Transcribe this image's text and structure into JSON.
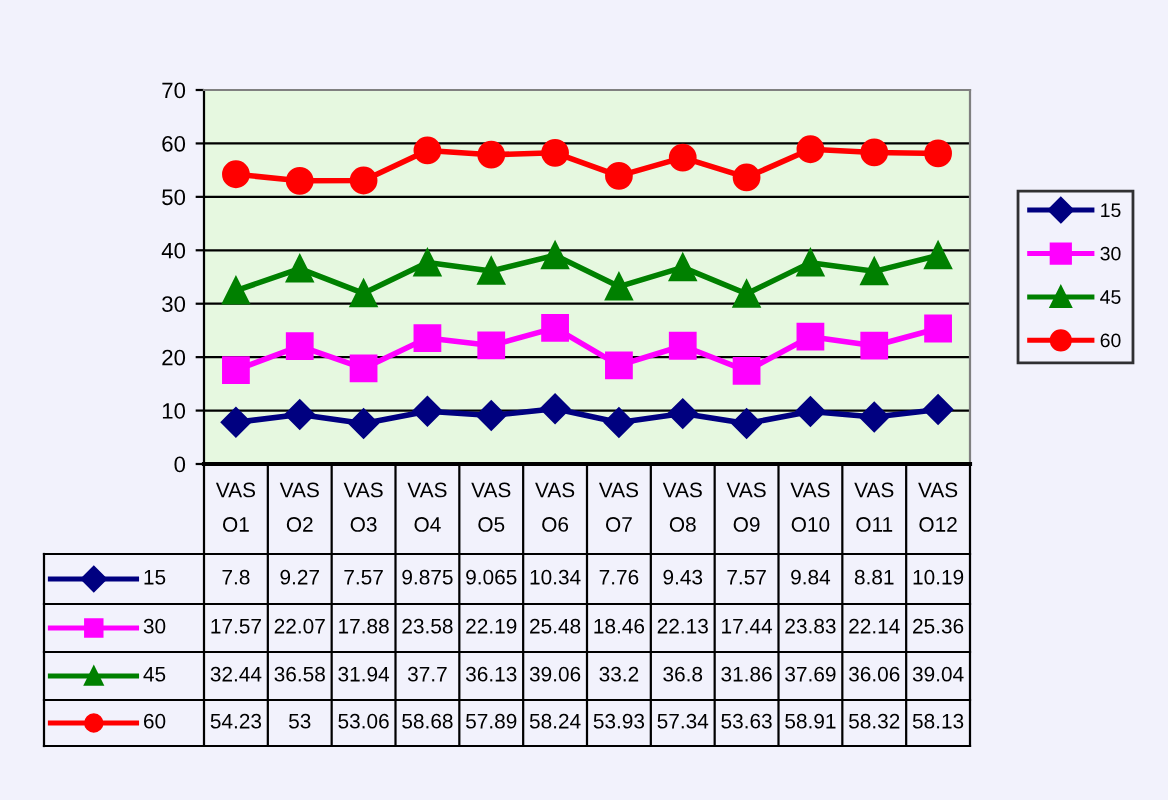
{
  "chart_data": {
    "type": "line",
    "categories": [
      "VAS O1",
      "VAS O2",
      "VAS O3",
      "VAS O4",
      "VAS O5",
      "VAS O6",
      "VAS O7",
      "VAS O8",
      "VAS O9",
      "VAS O10",
      "VAS O11",
      "VAS O12"
    ],
    "series": [
      {
        "name": "15",
        "color": "#000080",
        "marker": "diamond",
        "values": [
          7.8,
          9.27,
          7.57,
          9.875,
          9.065,
          10.34,
          7.76,
          9.43,
          7.57,
          9.84,
          8.81,
          10.19
        ]
      },
      {
        "name": "30",
        "color": "#ff00ff",
        "marker": "square",
        "values": [
          17.57,
          22.07,
          17.88,
          23.58,
          22.19,
          25.48,
          18.46,
          22.13,
          17.44,
          23.83,
          22.14,
          25.36
        ]
      },
      {
        "name": "45",
        "color": "#008000",
        "marker": "triangle",
        "values": [
          32.44,
          36.58,
          31.94,
          37.7,
          36.13,
          39.06,
          33.2,
          36.8,
          31.86,
          37.69,
          36.06,
          39.04
        ]
      },
      {
        "name": "60",
        "color": "#ff0000",
        "marker": "circle",
        "values": [
          54.23,
          53,
          53.06,
          58.68,
          57.89,
          58.24,
          53.93,
          57.34,
          53.63,
          58.91,
          58.32,
          58.13
        ]
      }
    ],
    "ylim": [
      0,
      70
    ],
    "yticks": [
      0,
      10,
      20,
      30,
      40,
      50,
      60,
      70
    ],
    "grid": "y",
    "legend": "right",
    "data_labels": true,
    "line_style": "solid"
  }
}
